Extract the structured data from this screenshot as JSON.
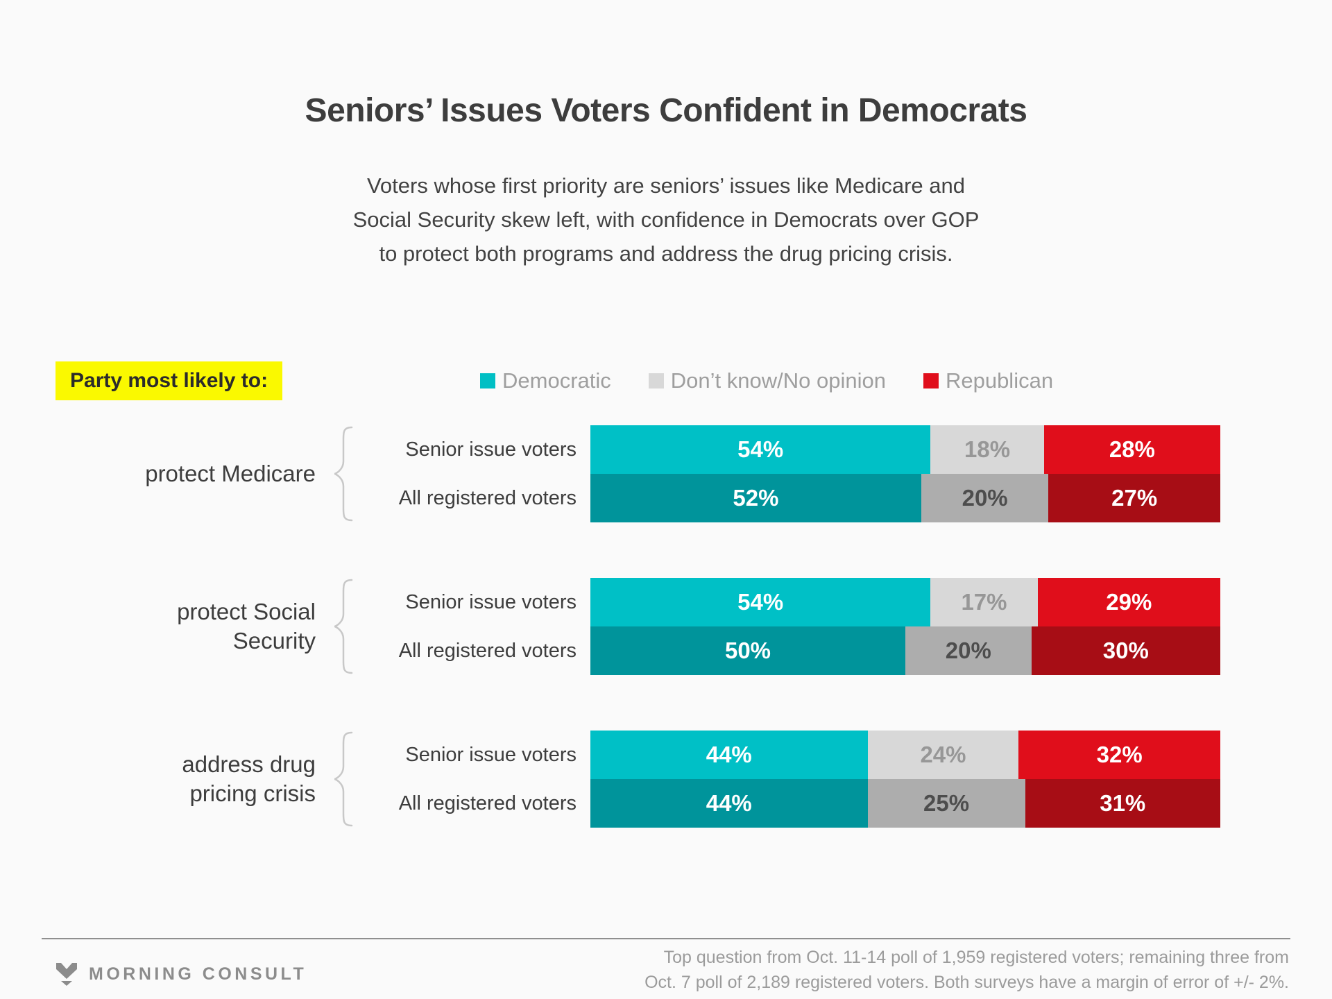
{
  "title": "Seniors’ Issues Voters Confident in Democrats",
  "subtitle_lines": [
    "Voters whose first priority are seniors’ issues like Medicare and",
    "Social Security skew left, with confidence in Democrats over GOP",
    "to protect both programs and address the drug pricing crisis."
  ],
  "legend": {
    "prompt": "Party most likely to:",
    "highlight_color": "#FAF900",
    "items": [
      {
        "label": "Democratic",
        "color": "#00BFC4"
      },
      {
        "label": "Don’t know/No opinion",
        "color": "#D8D8D8"
      },
      {
        "label": "Republican",
        "color": "#E00E1B"
      }
    ]
  },
  "chart_data": {
    "type": "bar",
    "orientation": "horizontal",
    "stacked": true,
    "unit": "%",
    "series_names": [
      "Democratic",
      "Don’t know/No opinion",
      "Republican"
    ],
    "slugs": [
      "democratic",
      "dont-know-no-opinion",
      "republican"
    ],
    "palette": {
      "senior": [
        "#00C0C6",
        "#D8D8D8",
        "#E00E1B"
      ],
      "all": [
        "#00949B",
        "#ADADAD",
        "#A70D15"
      ]
    },
    "value_colors": {
      "senior": [
        "#FFFFFF",
        "#979797",
        "#FFFFFF"
      ],
      "all": [
        "#FFFFFF",
        "#4D4D4D",
        "#FFFFFF"
      ]
    },
    "groups": [
      {
        "label": "protect Medicare",
        "rows": [
          {
            "label": "Senior issue voters",
            "values": [
              54,
              18,
              28
            ]
          },
          {
            "label": "All registered voters",
            "values": [
              52,
              20,
              27
            ]
          }
        ]
      },
      {
        "label": "protect Social\nSecurity",
        "rows": [
          {
            "label": "Senior issue voters",
            "values": [
              54,
              17,
              29
            ]
          },
          {
            "label": "All registered voters",
            "values": [
              50,
              20,
              30
            ]
          }
        ]
      },
      {
        "label": "address drug\npricing crisis",
        "rows": [
          {
            "label": "Senior issue voters",
            "values": [
              44,
              24,
              32
            ]
          },
          {
            "label": "All registered voters",
            "values": [
              44,
              25,
              31
            ]
          }
        ]
      }
    ]
  },
  "footer": {
    "brand": "MORNING CONSULT",
    "source_lines": [
      "Top question from Oct. 11-14 poll of 1,959 registered voters; remaining three from",
      "Oct. 7 poll of 2,189 registered voters. Both surveys have a margin of error of +/- 2%."
    ]
  }
}
